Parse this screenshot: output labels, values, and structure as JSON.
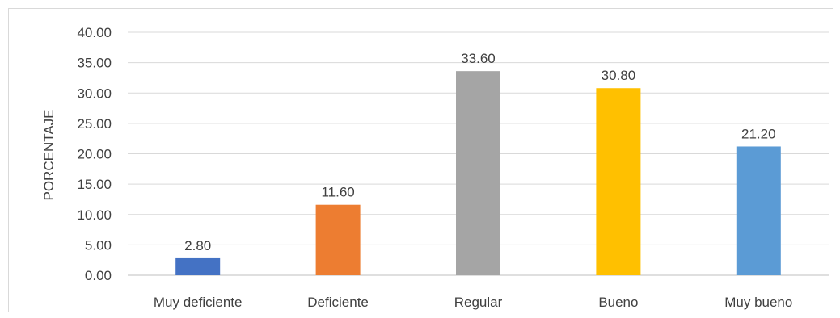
{
  "chart_data": {
    "type": "bar",
    "categories": [
      "Muy deficiente",
      "Deficiente",
      "Regular",
      "Bueno",
      "Muy bueno"
    ],
    "values": [
      2.8,
      11.6,
      33.6,
      30.8,
      21.2
    ],
    "data_labels": [
      "2.80",
      "11.60",
      "33.60",
      "30.80",
      "21.20"
    ],
    "colors": [
      "#4472c4",
      "#ed7d31",
      "#a5a5a5",
      "#ffc000",
      "#5b9bd5"
    ],
    "ylabel": "PORCENTAJE",
    "xlabel": "",
    "title": "",
    "ylim": [
      0,
      40
    ],
    "yticks": [
      0,
      5,
      10,
      15,
      20,
      25,
      30,
      35,
      40
    ],
    "ytick_labels": [
      "0.00",
      "5.00",
      "10.00",
      "15.00",
      "20.00",
      "25.00",
      "30.00",
      "35.00",
      "40.00"
    ],
    "grid": true,
    "legend": "none"
  }
}
